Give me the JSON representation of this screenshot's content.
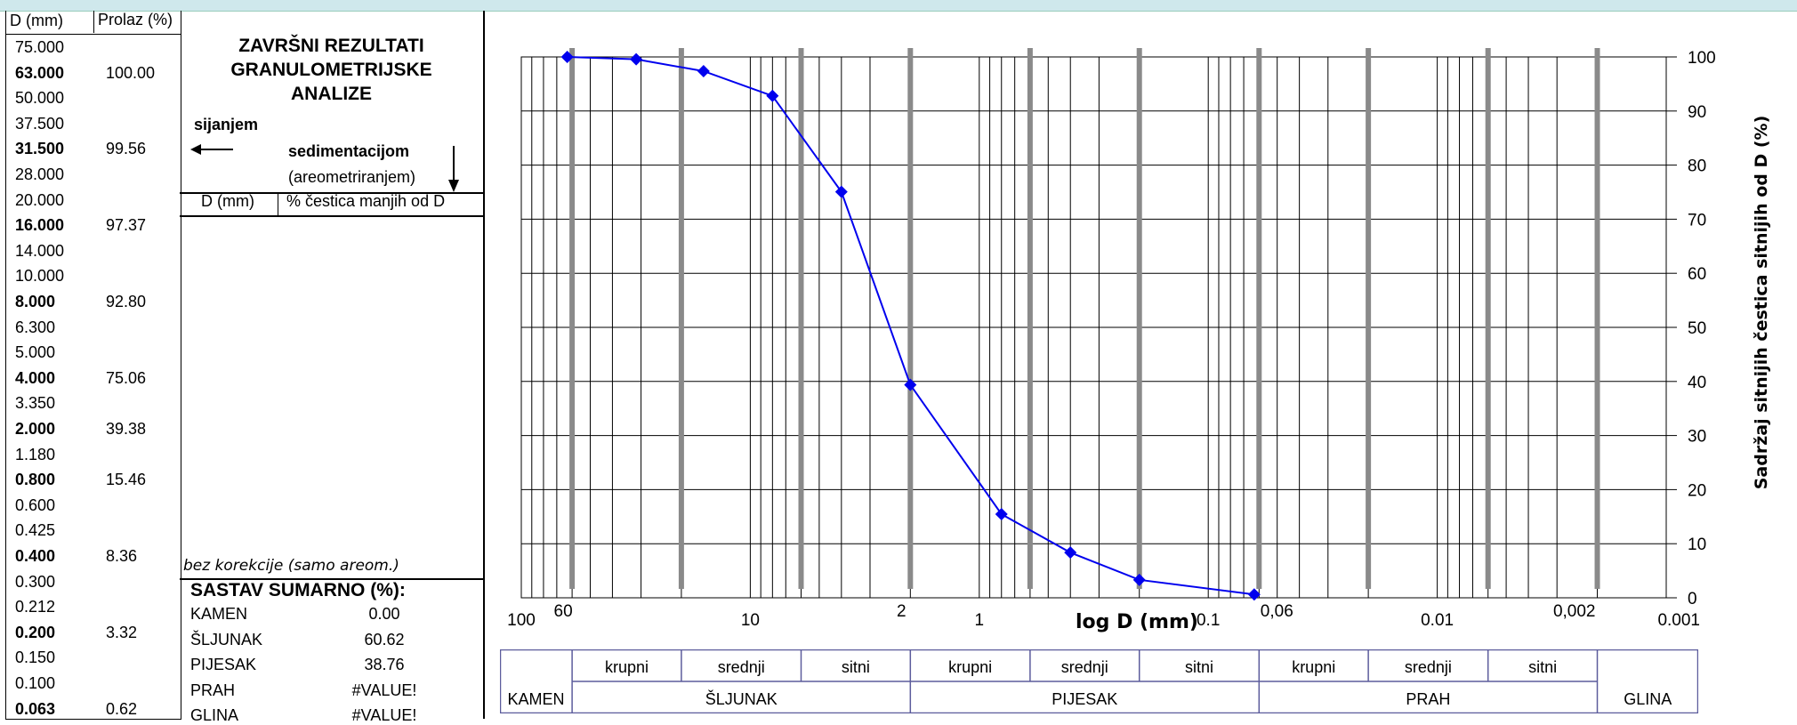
{
  "left_table": {
    "headers": [
      "D (mm)",
      "Prolaz (%)"
    ],
    "rows": [
      {
        "d": "75.000",
        "p": "",
        "bold": false
      },
      {
        "d": "63.000",
        "p": "100.00",
        "bold": true
      },
      {
        "d": "50.000",
        "p": "",
        "bold": false
      },
      {
        "d": "37.500",
        "p": "",
        "bold": false
      },
      {
        "d": "31.500",
        "p": "99.56",
        "bold": true
      },
      {
        "d": "28.000",
        "p": "",
        "bold": false
      },
      {
        "d": "20.000",
        "p": "",
        "bold": false
      },
      {
        "d": "16.000",
        "p": "97.37",
        "bold": true
      },
      {
        "d": "14.000",
        "p": "",
        "bold": false
      },
      {
        "d": "10.000",
        "p": "",
        "bold": false
      },
      {
        "d": "8.000",
        "p": "92.80",
        "bold": true
      },
      {
        "d": "6.300",
        "p": "",
        "bold": false
      },
      {
        "d": "5.000",
        "p": "",
        "bold": false
      },
      {
        "d": "4.000",
        "p": "75.06",
        "bold": true
      },
      {
        "d": "3.350",
        "p": "",
        "bold": false
      },
      {
        "d": "2.000",
        "p": "39.38",
        "bold": true
      },
      {
        "d": "1.180",
        "p": "",
        "bold": false
      },
      {
        "d": "0.800",
        "p": "15.46",
        "bold": true
      },
      {
        "d": "0.600",
        "p": "",
        "bold": false
      },
      {
        "d": "0.425",
        "p": "",
        "bold": false
      },
      {
        "d": "0.400",
        "p": "8.36",
        "bold": true
      },
      {
        "d": "0.300",
        "p": "",
        "bold": false
      },
      {
        "d": "0.212",
        "p": "",
        "bold": false
      },
      {
        "d": "0.200",
        "p": "3.32",
        "bold": true
      },
      {
        "d": "0.150",
        "p": "",
        "bold": false
      },
      {
        "d": "0.100",
        "p": "",
        "bold": false
      },
      {
        "d": "0.063",
        "p": "0.62",
        "bold": true
      }
    ]
  },
  "middle": {
    "title_lines": [
      "ZAVRŠNI REZULTATI",
      "GRANULOMETRIJSKE",
      "ANALIZE"
    ],
    "sieving_label": "sijanjem",
    "sedimentation_label": "sedimentacijom",
    "sedimentation_sub": "(areometriranjem)",
    "col_d": "D (mm)",
    "col_pct": "% čestica manjih od D",
    "note": "bez korekcije (samo areom.)",
    "summary_title": "SASTAV SUMARNO (%):",
    "summary": [
      {
        "name": "KAMEN",
        "value": "0.00"
      },
      {
        "name": "ŠLJUNAK",
        "value": "60.62"
      },
      {
        "name": "PIJESAK",
        "value": "38.76"
      },
      {
        "name": "PRAH",
        "value": "#VALUE!"
      },
      {
        "name": "GLINA",
        "value": "#VALUE!"
      }
    ]
  },
  "classification": {
    "sub_labels": [
      "krupni",
      "srednji",
      "sitni",
      "krupni",
      "srednji",
      "sitni",
      "krupni",
      "srednji",
      "sitni"
    ],
    "groups": [
      "KAMEN",
      "ŠLJUNAK",
      "PIJESAK",
      "PRAH",
      "GLINA"
    ]
  },
  "chart_data": {
    "type": "line",
    "xlabel": "log D (mm)",
    "ylabel": "Sadržaj sitnijih čestica sitnijih od D (%)",
    "x_scale": "log",
    "x_reversed": true,
    "xlim": [
      100,
      0.001
    ],
    "ylim": [
      0,
      100
    ],
    "y_ticks": [
      0,
      10,
      20,
      30,
      40,
      50,
      60,
      70,
      80,
      90,
      100
    ],
    "x_tick_labels": [
      {
        "value": 100,
        "label": "100"
      },
      {
        "value": 10,
        "label": "10"
      },
      {
        "value": 1,
        "label": "1"
      },
      {
        "value": 0.1,
        "label": "0.1"
      },
      {
        "value": 0.01,
        "label": "0.01"
      },
      {
        "value": 0.001,
        "label": "0.001"
      }
    ],
    "boundary_labels": [
      {
        "value": 60,
        "label": "60"
      },
      {
        "value": 2,
        "label": "2"
      },
      {
        "value": 0.06,
        "label": "0,06"
      },
      {
        "value": 0.002,
        "label": "0,002"
      }
    ],
    "fraction_boundaries": [
      60,
      20,
      6,
      2,
      0.6,
      0.2,
      0.06,
      0.02,
      0.006,
      0.002
    ],
    "series": [
      {
        "color": "#0000ee",
        "x": [
          63,
          31.5,
          16,
          8,
          4,
          2,
          0.8,
          0.4,
          0.2,
          0.063
        ],
        "y": [
          100,
          99.56,
          97.37,
          92.8,
          75.06,
          39.38,
          15.46,
          8.36,
          3.32,
          0.62
        ]
      }
    ],
    "grid": true
  }
}
